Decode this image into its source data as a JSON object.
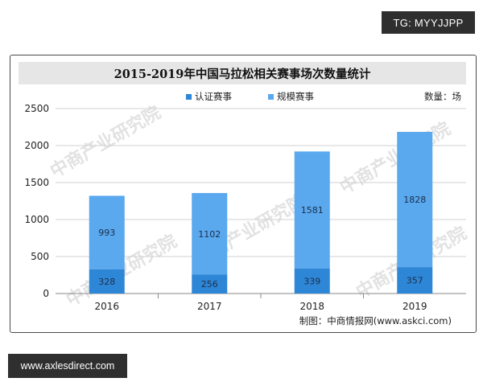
{
  "top_tag": "TG: MYYJJPP",
  "bottom_tag": "www.axlesdirect.com",
  "watermark_text": "中商产业研究院",
  "unit_label": "数量：场",
  "source": "制图：中商情报网(www.askci.com)",
  "colors": {
    "certified": "#2e86d6",
    "scale": "#5aa8ee",
    "frame": "#4a4a4a",
    "title_bg": "#e6e6e6"
  },
  "chart_data": {
    "type": "bar",
    "title": "2015-2019年中国马拉松相关赛事场次数量统计",
    "categories": [
      "2016",
      "2017",
      "2018",
      "2019"
    ],
    "series": [
      {
        "name": "认证赛事",
        "values": [
          328,
          256,
          339,
          357
        ]
      },
      {
        "name": "规模赛事",
        "values": [
          993,
          1102,
          1581,
          1828
        ]
      }
    ],
    "stacked": true,
    "ylim": [
      0,
      2500
    ],
    "yticks": [
      0,
      500,
      1000,
      1500,
      2000,
      2500
    ],
    "grid": true,
    "legend_position": "top"
  }
}
